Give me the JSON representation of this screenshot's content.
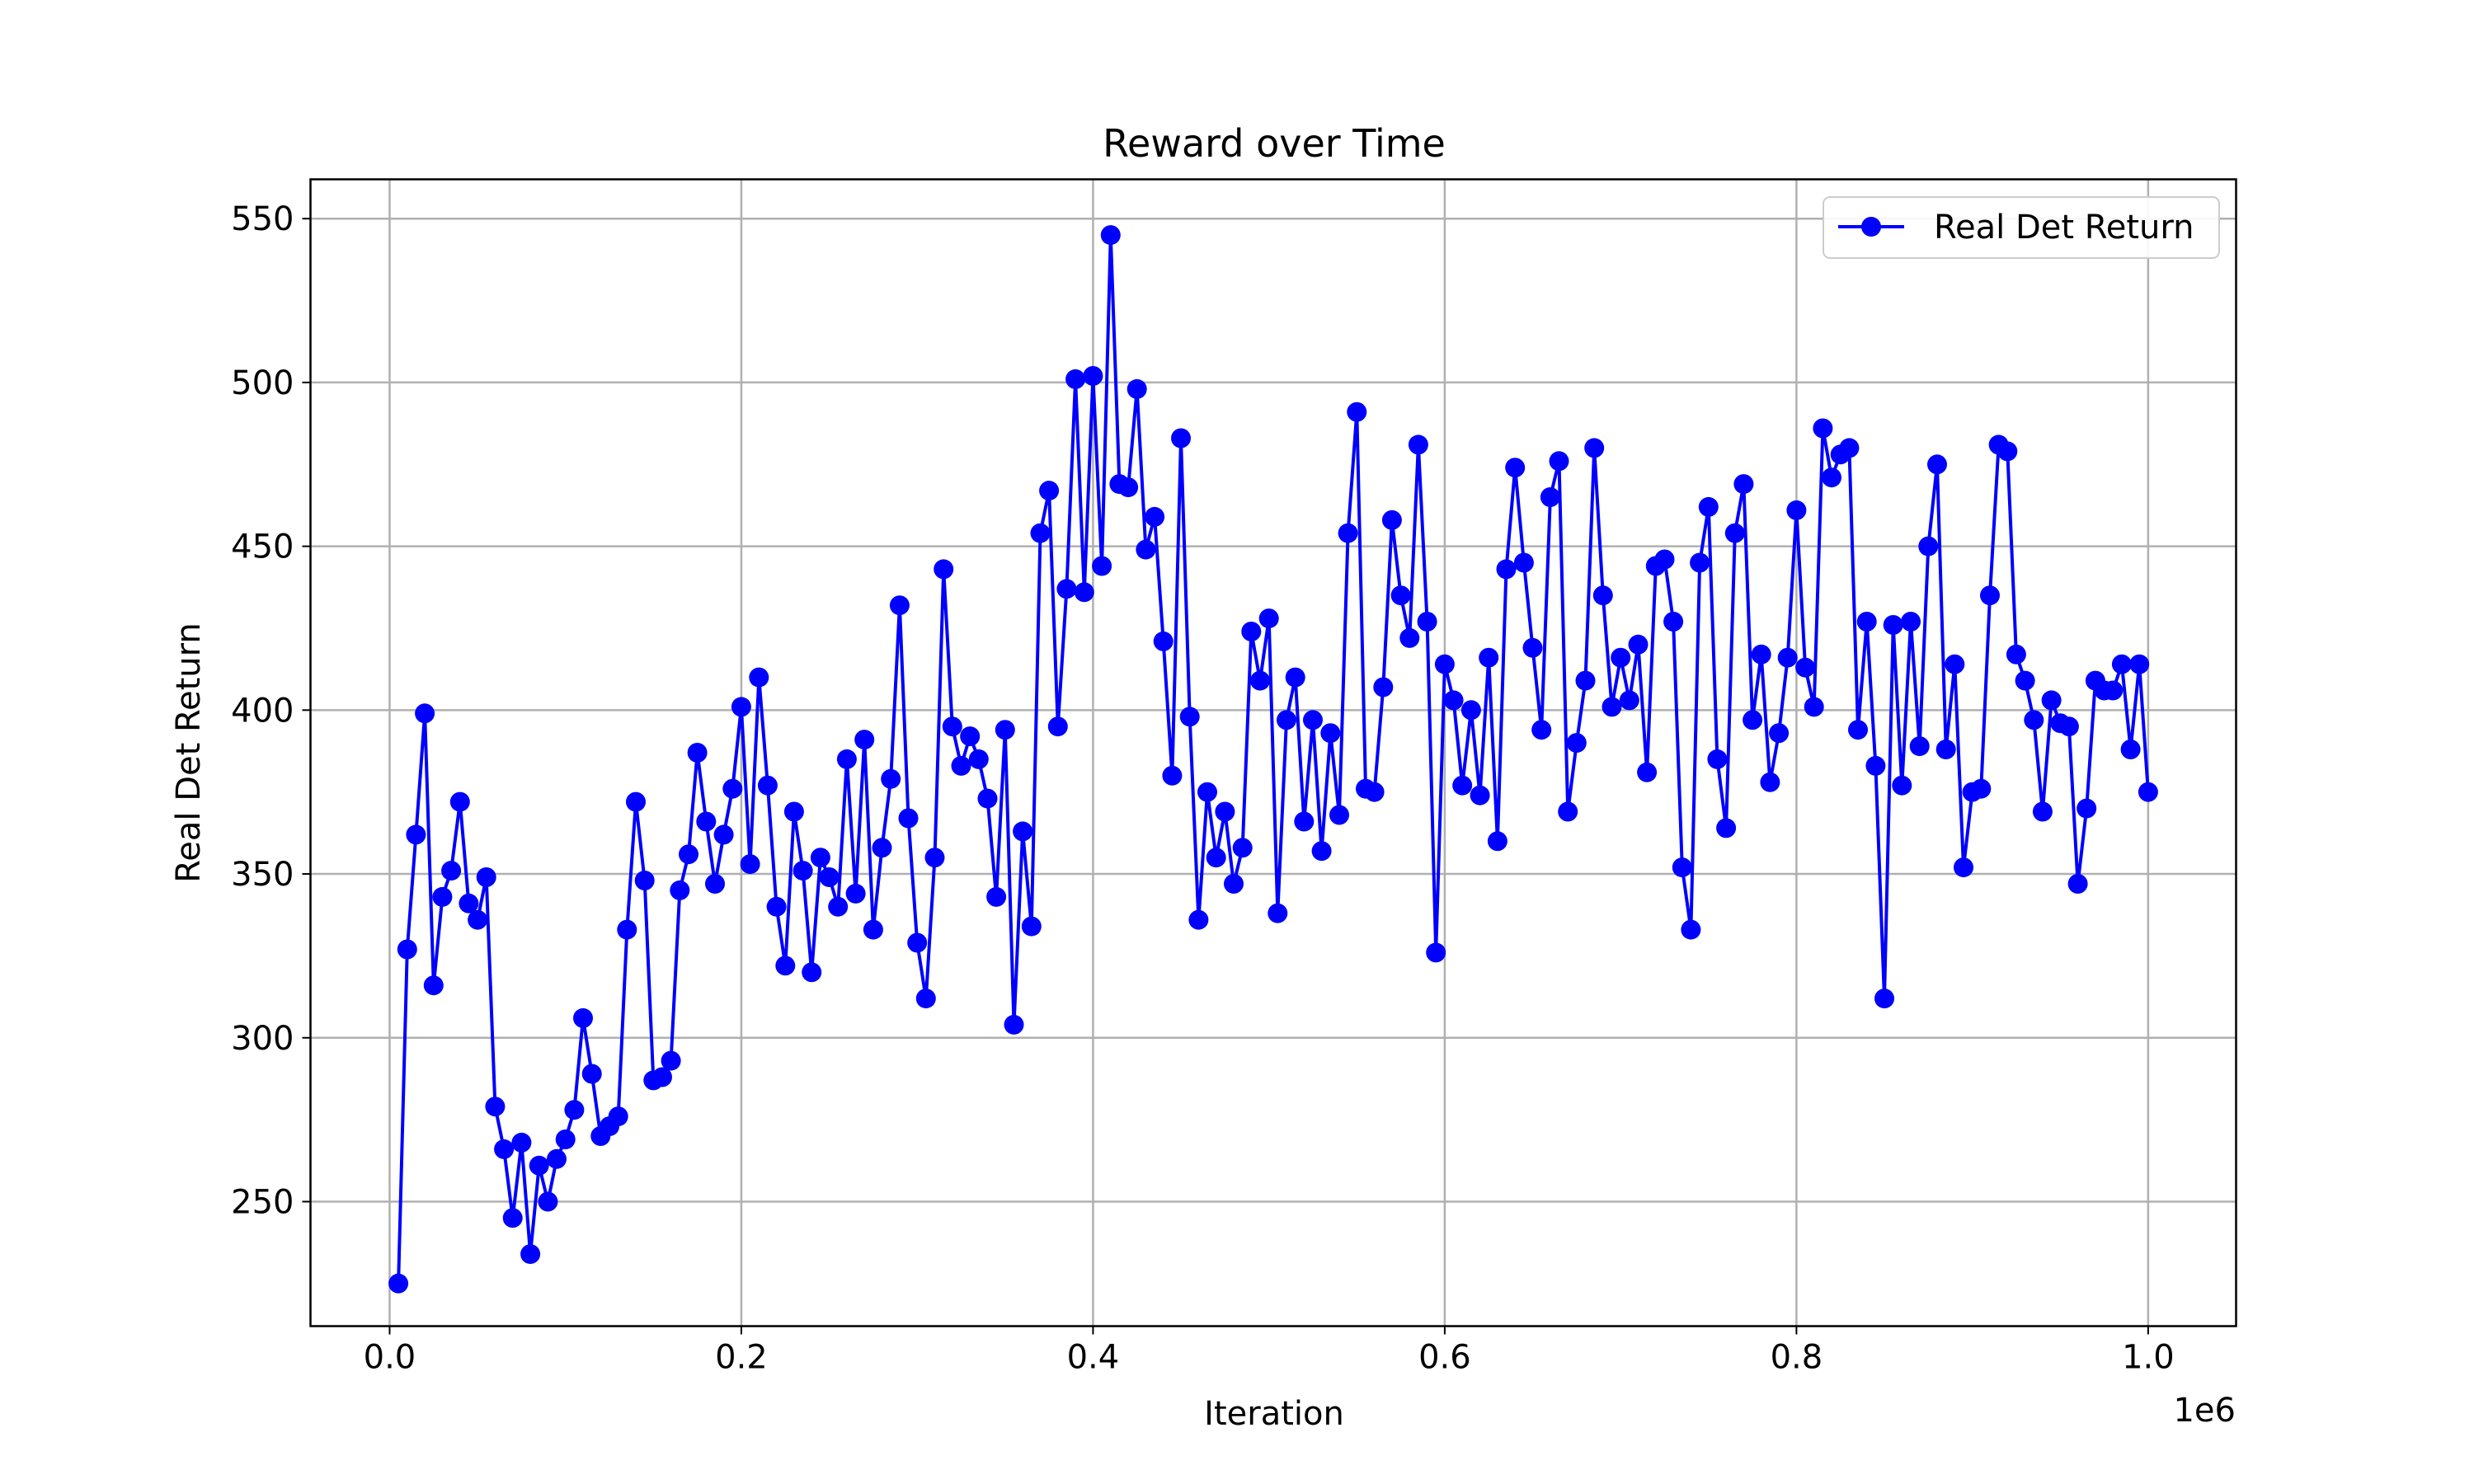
{
  "chart_data": {
    "type": "line",
    "title": "Reward over Time",
    "xlabel": "Iteration",
    "ylabel": "Real Det Return",
    "x_offset_label": "1e6",
    "x_scale": 1000000,
    "xlim": [
      -45000,
      1050000
    ],
    "ylim": [
      212,
      562
    ],
    "xticks": [
      0,
      200000,
      400000,
      600000,
      800000,
      1000000
    ],
    "xtick_labels": [
      "0.0",
      "0.2",
      "0.4",
      "0.6",
      "0.8",
      "1.0"
    ],
    "yticks": [
      250,
      300,
      350,
      400,
      450,
      500,
      550
    ],
    "ytick_labels": [
      "250",
      "300",
      "350",
      "400",
      "450",
      "500",
      "550"
    ],
    "grid": true,
    "legend_position": "upper right",
    "series": [
      {
        "name": "Real Det Return",
        "color": "#0000ff",
        "marker": "circle",
        "x": [
          5000,
          10000,
          15000,
          20000,
          25000,
          30000,
          35000,
          40000,
          45000,
          50000,
          55000,
          60000,
          65000,
          70000,
          75000,
          80000,
          85000,
          90000,
          95000,
          100000,
          105000,
          110000,
          115000,
          120000,
          125000,
          130000,
          135000,
          140000,
          145000,
          150000,
          155000,
          160000,
          165000,
          170000,
          175000,
          180000,
          185000,
          190000,
          195000,
          200000,
          205000,
          210000,
          215000,
          220000,
          225000,
          230000,
          235000,
          240000,
          245000,
          250000,
          255000,
          260000,
          265000,
          270000,
          275000,
          280000,
          285000,
          290000,
          295000,
          300000,
          305000,
          310000,
          315000,
          320000,
          325000,
          330000,
          335000,
          340000,
          345000,
          350000,
          355000,
          360000,
          365000,
          370000,
          375000,
          380000,
          385000,
          390000,
          395000,
          400000,
          405000,
          410000,
          415000,
          420000,
          425000,
          430000,
          435000,
          440000,
          445000,
          450000,
          455000,
          460000,
          465000,
          470000,
          475000,
          480000,
          485000,
          490000,
          495000,
          500000,
          505000,
          510000,
          515000,
          520000,
          525000,
          530000,
          535000,
          540000,
          545000,
          550000,
          555000,
          560000,
          565000,
          570000,
          575000,
          580000,
          585000,
          590000,
          595000,
          600000,
          605000,
          610000,
          615000,
          620000,
          625000,
          630000,
          635000,
          640000,
          645000,
          650000,
          655000,
          660000,
          665000,
          670000,
          675000,
          680000,
          685000,
          690000,
          695000,
          700000,
          705000,
          710000,
          715000,
          720000,
          725000,
          730000,
          735000,
          740000,
          745000,
          750000,
          755000,
          760000,
          765000,
          770000,
          775000,
          780000,
          785000,
          790000,
          795000,
          800000,
          805000,
          810000,
          815000,
          820000,
          825000,
          830000,
          835000,
          840000,
          845000,
          850000,
          855000,
          860000,
          865000,
          870000,
          875000,
          880000,
          885000,
          890000,
          895000,
          900000,
          905000,
          910000,
          915000,
          920000,
          925000,
          930000,
          935000,
          940000,
          945000,
          950000,
          955000,
          960000,
          965000,
          970000,
          975000,
          980000,
          985000,
          990000,
          995000,
          1000000
        ],
        "values": [
          225,
          327,
          362,
          399,
          316,
          343,
          351,
          372,
          341,
          336,
          349,
          279,
          266,
          245,
          268,
          234,
          261,
          250,
          263,
          269,
          278,
          306,
          289,
          270,
          273,
          276,
          333,
          372,
          348,
          287,
          288,
          293,
          345,
          356,
          387,
          366,
          347,
          362,
          376,
          401,
          353,
          410,
          377,
          340,
          322,
          369,
          351,
          320,
          355,
          349,
          340,
          385,
          344,
          391,
          333,
          358,
          379,
          432,
          367,
          329,
          312,
          355,
          443,
          395,
          383,
          392,
          385,
          373,
          343,
          394,
          304,
          363,
          334,
          454,
          467,
          395,
          437,
          501,
          436,
          502,
          444,
          545,
          469,
          468,
          498,
          449,
          459,
          421,
          380,
          483,
          398,
          336,
          375,
          355,
          369,
          347,
          358,
          424,
          409,
          428,
          338,
          397,
          410,
          366,
          397,
          357,
          393,
          368,
          454,
          491,
          376,
          375,
          407,
          458,
          435,
          422,
          481,
          427,
          326,
          414,
          403,
          377,
          400,
          374,
          416,
          360,
          443,
          474,
          445,
          419,
          394,
          465,
          476,
          369,
          390,
          409,
          480,
          435,
          401,
          416,
          403,
          420,
          381,
          444,
          446,
          427,
          352,
          333,
          445,
          462,
          385,
          364,
          454,
          469,
          397,
          417,
          378,
          393,
          416,
          461,
          413,
          401,
          486,
          471,
          478,
          480,
          394,
          427,
          383,
          312,
          426,
          377,
          427,
          389,
          450,
          475,
          388,
          414,
          352,
          375,
          376,
          435,
          481,
          479,
          417,
          409,
          397,
          369,
          403,
          396,
          395,
          347,
          370,
          409,
          406,
          406,
          414,
          388,
          414,
          375
        ]
      }
    ]
  }
}
